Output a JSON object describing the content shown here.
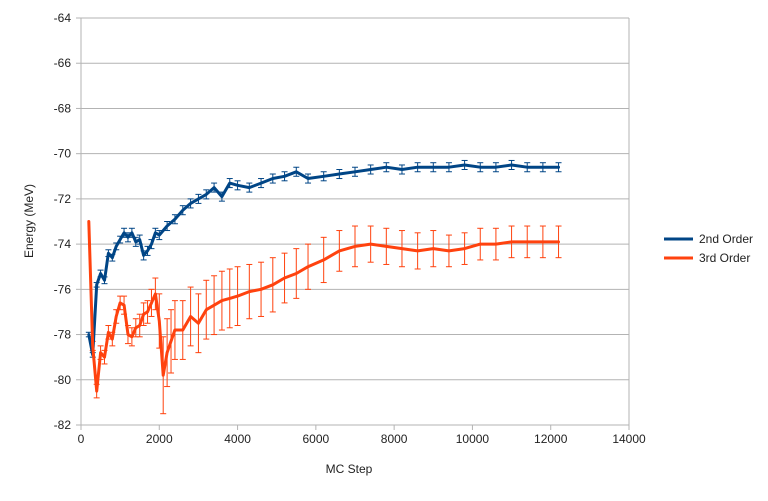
{
  "chart_data": {
    "type": "line",
    "title": "",
    "xlabel": "MC Step",
    "ylabel": "Energy (MeV)",
    "xlim": [
      0,
      14000
    ],
    "ylim": [
      -82,
      -64
    ],
    "x_ticks": [
      "0",
      "2000",
      "4000",
      "6000",
      "8000",
      "10000",
      "12000",
      "14000"
    ],
    "y_ticks": [
      "-64",
      "-66",
      "-68",
      "-70",
      "-72",
      "-74",
      "-76",
      "-78",
      "-80",
      "-82"
    ],
    "grid": "horizontal",
    "legend_position": "right",
    "series": [
      {
        "name": "2nd Order",
        "color": "#004586",
        "x": [
          200,
          300,
          400,
          500,
          600,
          700,
          800,
          900,
          1000,
          1100,
          1200,
          1300,
          1400,
          1500,
          1600,
          1700,
          1800,
          1900,
          2000,
          2200,
          2400,
          2600,
          2800,
          3000,
          3200,
          3400,
          3600,
          3800,
          4000,
          4300,
          4600,
          4900,
          5200,
          5500,
          5800,
          6200,
          6600,
          7000,
          7400,
          7800,
          8200,
          8600,
          9000,
          9400,
          9800,
          10200,
          10600,
          11000,
          11400,
          11800,
          12200
        ],
        "y": [
          -78.0,
          -78.9,
          -75.8,
          -75.3,
          -75.6,
          -74.4,
          -74.6,
          -74.1,
          -73.8,
          -73.5,
          -73.7,
          -73.5,
          -73.9,
          -73.8,
          -74.5,
          -74.3,
          -74.0,
          -73.5,
          -73.6,
          -73.2,
          -72.9,
          -72.5,
          -72.2,
          -72.0,
          -71.8,
          -71.5,
          -71.9,
          -71.3,
          -71.4,
          -71.5,
          -71.3,
          -71.1,
          -71.0,
          -70.8,
          -71.1,
          -71.0,
          -70.9,
          -70.8,
          -70.7,
          -70.6,
          -70.7,
          -70.6,
          -70.6,
          -70.6,
          -70.5,
          -70.6,
          -70.6,
          -70.5,
          -70.6,
          -70.6,
          -70.6
        ],
        "err": [
          0.1,
          0.1,
          0.1,
          0.15,
          0.15,
          0.15,
          0.15,
          0.15,
          0.15,
          0.2,
          0.2,
          0.2,
          0.2,
          0.2,
          0.2,
          0.2,
          0.2,
          0.2,
          0.2,
          0.2,
          0.2,
          0.2,
          0.2,
          0.2,
          0.2,
          0.2,
          0.2,
          0.2,
          0.2,
          0.2,
          0.2,
          0.2,
          0.2,
          0.2,
          0.2,
          0.2,
          0.2,
          0.2,
          0.2,
          0.2,
          0.2,
          0.2,
          0.2,
          0.2,
          0.2,
          0.2,
          0.2,
          0.2,
          0.2,
          0.2,
          0.2
        ]
      },
      {
        "name": "3rd Order",
        "color": "#ff420e",
        "x": [
          200,
          300,
          400,
          500,
          600,
          700,
          800,
          900,
          1000,
          1100,
          1200,
          1300,
          1400,
          1500,
          1600,
          1700,
          1800,
          1900,
          2000,
          2100,
          2200,
          2300,
          2400,
          2600,
          2800,
          3000,
          3200,
          3400,
          3600,
          3800,
          4000,
          4300,
          4600,
          4900,
          5200,
          5500,
          5800,
          6200,
          6600,
          7000,
          7400,
          7800,
          8200,
          8600,
          9000,
          9400,
          9800,
          10200,
          10600,
          11000,
          11400,
          11800,
          12200
        ],
        "y": [
          -73.0,
          -78.5,
          -80.5,
          -78.8,
          -79.0,
          -77.9,
          -78.2,
          -77.2,
          -76.6,
          -76.7,
          -78.0,
          -78.1,
          -77.7,
          -77.6,
          -77.1,
          -77.0,
          -76.6,
          -76.2,
          -77.4,
          -79.8,
          -78.8,
          -78.3,
          -77.8,
          -77.8,
          -77.2,
          -77.5,
          -76.9,
          -76.7,
          -76.5,
          -76.4,
          -76.3,
          -76.1,
          -76.0,
          -75.8,
          -75.5,
          -75.3,
          -75.0,
          -74.7,
          -74.3,
          -74.1,
          -74.0,
          -74.1,
          -74.2,
          -74.3,
          -74.2,
          -74.3,
          -74.2,
          -74.0,
          -74.0,
          -73.9,
          -73.9,
          -73.9,
          -73.9
        ],
        "err": [
          0.0,
          0.2,
          0.3,
          0.3,
          0.3,
          0.3,
          0.3,
          0.3,
          0.3,
          0.4,
          0.4,
          0.4,
          0.4,
          0.5,
          0.5,
          0.5,
          0.6,
          0.7,
          1.2,
          1.7,
          1.5,
          1.4,
          1.3,
          1.3,
          1.3,
          1.3,
          1.3,
          1.3,
          1.3,
          1.3,
          1.3,
          1.2,
          1.2,
          1.2,
          1.1,
          1.1,
          1.0,
          1.0,
          0.9,
          0.9,
          0.8,
          0.8,
          0.8,
          0.8,
          0.8,
          0.7,
          0.7,
          0.7,
          0.7,
          0.7,
          0.7,
          0.7,
          0.7
        ]
      }
    ]
  }
}
